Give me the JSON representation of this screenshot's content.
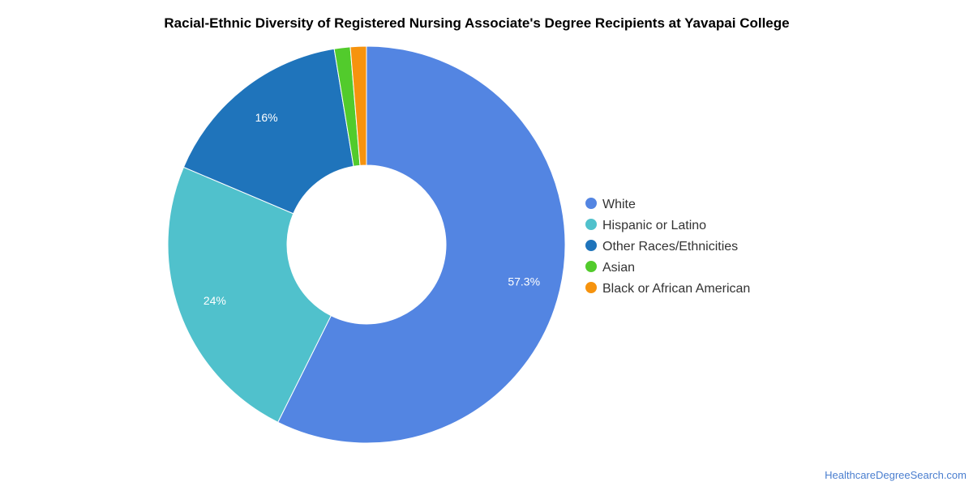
{
  "chart_data": {
    "type": "pie",
    "title": "Racial-Ethnic Diversity of Registered Nursing Associate's Degree Recipients at Yavapai College",
    "categories": [
      "White",
      "Hispanic or Latino",
      "Other Races/Ethnicities",
      "Asian",
      "Black or African American"
    ],
    "values": [
      57.3,
      24,
      16,
      1.3,
      1.3
    ],
    "data_labels": [
      "57.3%",
      "24%",
      "16%",
      "",
      ""
    ],
    "colors": [
      "#5385e2",
      "#50c1cc",
      "#1f74bb",
      "#52cb2c",
      "#f6930e"
    ],
    "donut": true,
    "legend_position": "right"
  },
  "footer": {
    "source": "HealthcareDegreeSearch.com"
  }
}
